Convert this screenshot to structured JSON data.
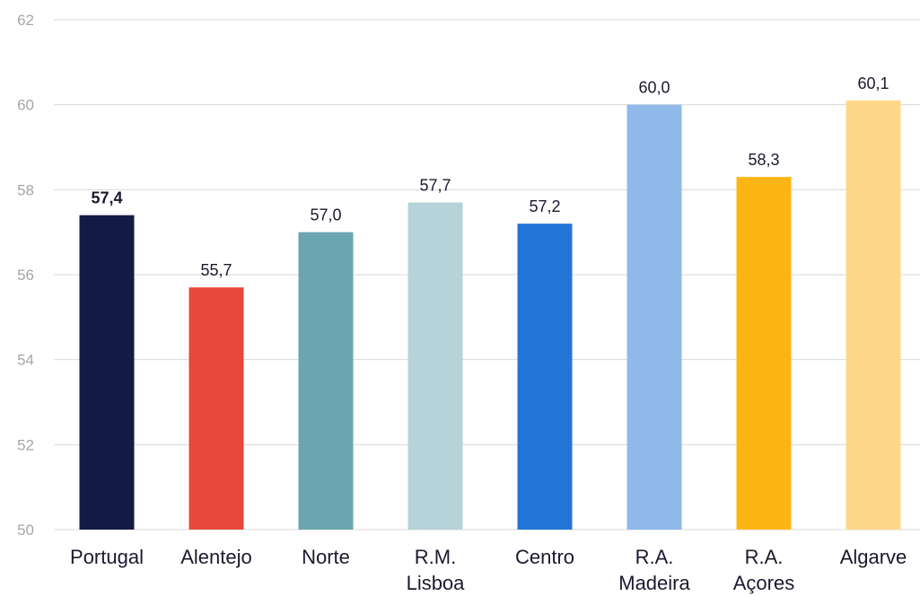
{
  "chart_data": {
    "type": "bar",
    "categories": [
      [
        "Portugal"
      ],
      [
        "Alentejo"
      ],
      [
        "Norte"
      ],
      [
        "R.M.",
        "Lisboa"
      ],
      [
        "Centro"
      ],
      [
        "R.A.",
        "Madeira"
      ],
      [
        "R.A.",
        "Açores"
      ],
      [
        "Algarve"
      ]
    ],
    "values": [
      57.4,
      55.7,
      57.0,
      57.7,
      57.2,
      60.0,
      58.3,
      60.1
    ],
    "data_labels": [
      "57,4",
      "55,7",
      "57,0",
      "57,7",
      "57,2",
      "60,0",
      "58,3",
      "60,1"
    ],
    "colors": [
      "#131b44",
      "#e8483a",
      "#6aa5b1",
      "#b5d3d8",
      "#2275d7",
      "#90b9ea",
      "#fdb515",
      "#fed888"
    ],
    "bold_labels": [
      true,
      false,
      false,
      false,
      false,
      false,
      false,
      false
    ],
    "ylim": [
      50,
      62
    ],
    "yticks": [
      "50",
      "52",
      "54",
      "56",
      "58",
      "60",
      "62"
    ],
    "ytick_values": [
      50,
      52,
      54,
      56,
      58,
      60,
      62
    ],
    "grid": true,
    "title": "",
    "xlabel": "",
    "ylabel": ""
  }
}
